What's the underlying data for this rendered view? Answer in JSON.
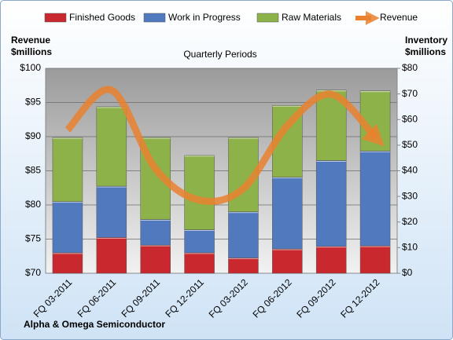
{
  "chart_data": {
    "type": "bar-line",
    "title": "Alpha & Omega Semiconductor",
    "subtitle": "Quarterly Periods",
    "ylabel": [
      "Revenue",
      "$millions"
    ],
    "y2label": [
      "Inventory",
      "$millions"
    ],
    "categories": [
      "FQ 03-2011",
      "FQ 06-2011",
      "FQ 09-2011",
      "FQ 12-2011",
      "FQ 03-2012",
      "FQ 06-2012",
      "FQ 09-2012",
      "FQ 12-2012"
    ],
    "series": [
      {
        "name": "Finished Goods",
        "color": "#c8282e",
        "axis": "y2",
        "values": [
          8,
          14,
          11,
          8,
          6,
          9.5,
          10.5,
          10.7
        ]
      },
      {
        "name": "Work in Progress",
        "color": "#5079be",
        "axis": "y2",
        "values": [
          20,
          20,
          10,
          9,
          18,
          28,
          33.5,
          37
        ]
      },
      {
        "name": "Raw Materials",
        "color": "#8db24a",
        "axis": "y2",
        "values": [
          25,
          31,
          32,
          29,
          29,
          28,
          27.5,
          23.5
        ]
      },
      {
        "name": "Revenue",
        "color": "#e9812f",
        "axis": "y",
        "values": [
          91,
          96.8,
          85.3,
          80.7,
          82.4,
          91.6,
          96.2,
          89.9
        ]
      }
    ],
    "ylim": [
      70,
      100
    ],
    "yticks": [
      {
        "value": 70,
        "label": "$70"
      },
      {
        "value": 75,
        "label": "$75"
      },
      {
        "value": 80,
        "label": "$80"
      },
      {
        "value": 85,
        "label": "$85"
      },
      {
        "value": 90,
        "label": "$90"
      },
      {
        "value": 95,
        "label": "$95"
      },
      {
        "value": 100,
        "label": "$100"
      }
    ],
    "y2lim": [
      0,
      80
    ],
    "y2ticks": [
      {
        "value": 0,
        "label": "$0"
      },
      {
        "value": 10,
        "label": "$10"
      },
      {
        "value": 20,
        "label": "$20"
      },
      {
        "value": 30,
        "label": "$30"
      },
      {
        "value": 40,
        "label": "$40"
      },
      {
        "value": 50,
        "label": "$50"
      },
      {
        "value": 60,
        "label": "$60"
      },
      {
        "value": 70,
        "label": "$70"
      },
      {
        "value": 80,
        "label": "$80"
      }
    ],
    "grid": true
  }
}
